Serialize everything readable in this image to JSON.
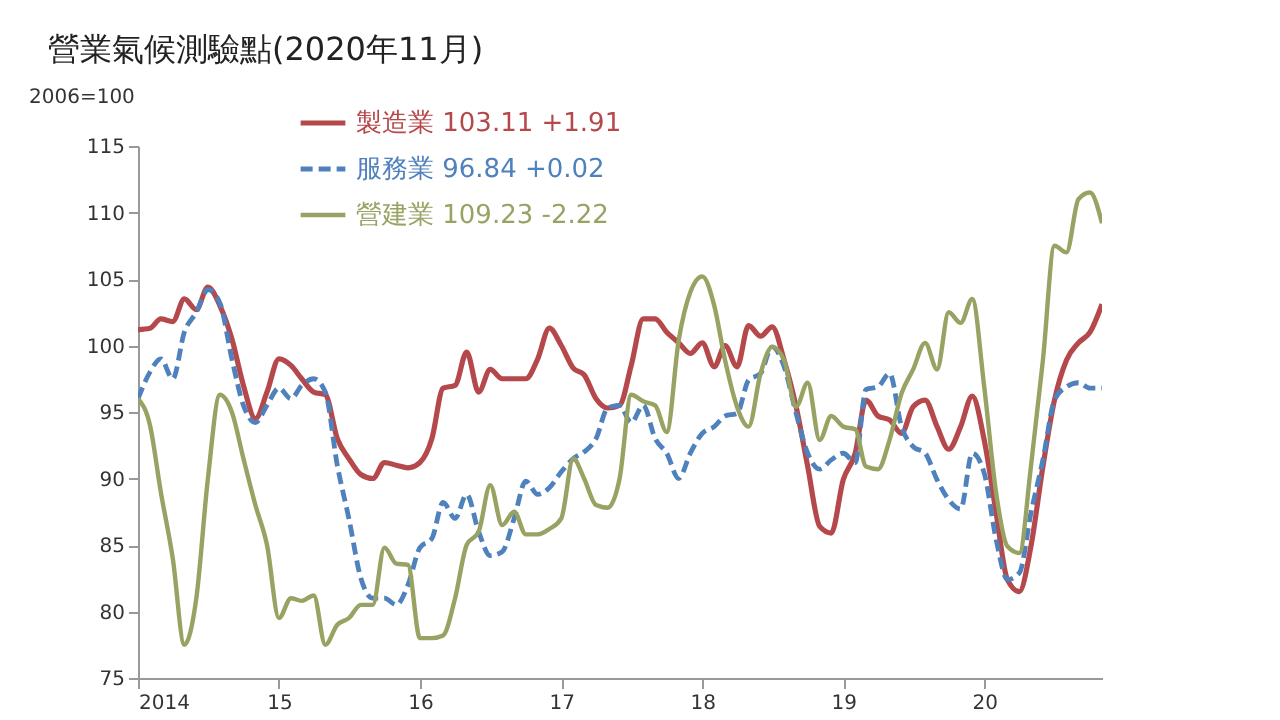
{
  "chart_data": {
    "type": "line",
    "title": "營業氣候測驗點(2020年11月)",
    "ylabel": "2006=100",
    "x": [
      "2014-01",
      "2014-02",
      "2014-03",
      "2014-04",
      "2014-05",
      "2014-06",
      "2014-07",
      "2014-08",
      "2014-09",
      "2014-10",
      "2014-11",
      "2014-12",
      "2015-01",
      "2015-02",
      "2015-03",
      "2015-04",
      "2015-05",
      "2015-06",
      "2015-07",
      "2015-08",
      "2015-09",
      "2015-10",
      "2015-11",
      "2015-12",
      "2016-01",
      "2016-02",
      "2016-03",
      "2016-04",
      "2016-05",
      "2016-06",
      "2016-07",
      "2016-08",
      "2016-09",
      "2016-10",
      "2016-11",
      "2016-12",
      "2017-01",
      "2017-02",
      "2017-03",
      "2017-04",
      "2017-05",
      "2017-06",
      "2017-07",
      "2017-08",
      "2017-09",
      "2017-10",
      "2017-11",
      "2017-12",
      "2018-01",
      "2018-02",
      "2018-03",
      "2018-04",
      "2018-05",
      "2018-06",
      "2018-07",
      "2018-08",
      "2018-09",
      "2018-10",
      "2018-11",
      "2018-12",
      "2019-01",
      "2019-02",
      "2019-03",
      "2019-04",
      "2019-05",
      "2019-06",
      "2019-07",
      "2019-08",
      "2019-09",
      "2019-10",
      "2019-11",
      "2019-12",
      "2020-01",
      "2020-02",
      "2020-03",
      "2020-04",
      "2020-05",
      "2020-06",
      "2020-07",
      "2020-08",
      "2020-09",
      "2020-10",
      "2020-11"
    ],
    "series": [
      {
        "name": "製造業   103.11   +1.91",
        "color": "#b5484b",
        "line_style": "solid",
        "values": [
          101.2,
          101.3,
          102,
          101.8,
          103.5,
          102.7,
          104.4,
          103,
          100.5,
          97,
          94.5,
          96.5,
          99,
          98.5,
          97.5,
          96.5,
          96.3,
          93,
          91.5,
          90.3,
          90,
          91.2,
          91,
          90.8,
          91.2,
          93,
          96.8,
          97,
          99.5,
          96.5,
          98.2,
          97.5,
          97.5,
          97.5,
          99,
          101.3,
          100,
          98.3,
          97.8,
          96,
          95.3,
          95.5,
          98.5,
          102,
          102,
          101,
          100.2,
          99.4,
          100.2,
          98.4,
          100,
          98.4,
          101.5,
          100.7,
          101.4,
          98.9,
          95.4,
          90.9,
          86.4,
          85.9,
          89.9,
          91.9,
          95.9,
          94.7,
          94.4,
          93.4,
          95.4,
          95.9,
          93.9,
          92.2,
          93.9,
          96.2,
          92.9,
          87.4,
          82.4,
          81.5,
          84.9,
          90.9,
          95.9,
          98.9,
          100.2,
          101,
          103.1
        ]
      },
      {
        "name": "服務業     96.84   +0.02",
        "color": "#4f81bd",
        "line_style": "dashed",
        "values": [
          96,
          98,
          99,
          97.5,
          101,
          102.5,
          104.2,
          103.2,
          99,
          95.5,
          94.2,
          95.5,
          96.8,
          96,
          97,
          97.5,
          96.5,
          91,
          87,
          82.5,
          81,
          81,
          80.5,
          82,
          84.8,
          85.5,
          88.2,
          87,
          88.8,
          86,
          84.2,
          84.5,
          87,
          89.8,
          88.8,
          89.3,
          90.5,
          91.5,
          92,
          93,
          95.3,
          95.5,
          94.2,
          95.5,
          93,
          91.9,
          90,
          91.9,
          93.4,
          93.9,
          94.7,
          94.9,
          97.4,
          97.9,
          99.9,
          98.4,
          94.9,
          91.9,
          90.7,
          91.4,
          91.9,
          91.2,
          96.7,
          96.9,
          97.9,
          93.9,
          92.4,
          91.9,
          89.9,
          88.4,
          87.7,
          91.9,
          90.4,
          85.4,
          82.4,
          82.9,
          87.4,
          91.4,
          95.9,
          96.9,
          97.2,
          96.8,
          96.8
        ]
      },
      {
        "name": "營建業   109.23   -2.22",
        "color": "#98a263",
        "line_style": "solid",
        "values": [
          96,
          94,
          89,
          84,
          77.5,
          81,
          90,
          96.3,
          95,
          91.5,
          88,
          85,
          79.5,
          81,
          80.8,
          81.2,
          77.5,
          79,
          79.5,
          80.5,
          80.5,
          84.8,
          83.6,
          83.5,
          78,
          78,
          78.2,
          81,
          85,
          86,
          89.5,
          86.5,
          87.5,
          85.8,
          85.8,
          86.2,
          87,
          91.5,
          90,
          88,
          87.8,
          90,
          96.3,
          95.8,
          95.5,
          93.5,
          100.4,
          104,
          105.2,
          103,
          98.9,
          95.4,
          93.9,
          97.9,
          99.9,
          98.9,
          95.4,
          97.2,
          92.9,
          94.7,
          93.9,
          93.7,
          90.9,
          90.7,
          92.9,
          96.4,
          98.2,
          100.2,
          98.2,
          102.5,
          101.7,
          103.5,
          96.9,
          88.9,
          84.9,
          84.4,
          90.9,
          98.9,
          107.5,
          107,
          111,
          111.5,
          109.2
        ]
      }
    ],
    "xlim": [
      "2014-01",
      "2020-11"
    ],
    "xticks": [
      {
        "value": "2014-01",
        "label": "2014"
      },
      {
        "value": "2015-01",
        "label": "15"
      },
      {
        "value": "2016-01",
        "label": "16"
      },
      {
        "value": "2017-01",
        "label": "17"
      },
      {
        "value": "2018-01",
        "label": "18"
      },
      {
        "value": "2019-01",
        "label": "19"
      },
      {
        "value": "2020-01",
        "label": "20"
      }
    ],
    "ylim": [
      75,
      115
    ],
    "yticks": [
      75,
      80,
      85,
      90,
      95,
      100,
      105,
      110,
      115
    ],
    "grid": false,
    "legend": "top"
  }
}
